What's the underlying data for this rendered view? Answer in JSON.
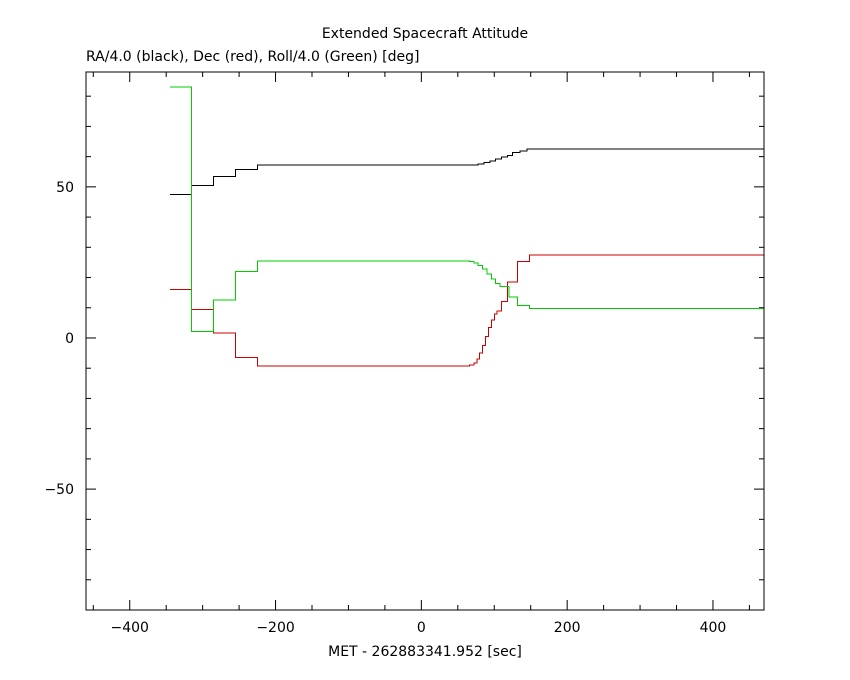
{
  "chart_data": {
    "type": "line",
    "title": "Extended Spacecraft Attitude",
    "subtitle": "RA/4.0 (black), Dec (red), Roll/4.0 (Green) [deg]",
    "xlabel": "MET - 262883341.952 [sec]",
    "ylabel": "",
    "xlim": [
      -460,
      470
    ],
    "ylim": [
      -90,
      88
    ],
    "xticks": [
      -400,
      -200,
      0,
      200,
      400
    ],
    "xtick_labels": [
      "−400",
      "−200",
      "0",
      "200",
      "400"
    ],
    "yticks": [
      -50,
      0,
      50
    ],
    "ytick_labels": [
      "−50",
      "0",
      "50"
    ],
    "x_minor_step": 50,
    "y_minor_step": 10,
    "grid": false,
    "series": [
      {
        "color": "#000000",
        "step": true,
        "x": [
          -345,
          -315,
          -285,
          -255,
          -225,
          70,
          78,
          86,
          94,
          102,
          110,
          118,
          125,
          135,
          145,
          470
        ],
        "y": [
          47.5,
          50.5,
          53.5,
          55.8,
          57.2,
          57.3,
          57.6,
          58.0,
          58.6,
          59.2,
          59.9,
          60.4,
          61.3,
          61.8,
          62.6,
          62.6
        ]
      },
      {
        "color": "#cc0000",
        "step": true,
        "x": [
          -345,
          -315,
          -285,
          -255,
          -225,
          66,
          72,
          76,
          80,
          84,
          88,
          92,
          96,
          100,
          104,
          110,
          118,
          132,
          148,
          470
        ],
        "y": [
          16,
          9.5,
          1.7,
          -6.5,
          -9.3,
          -9.0,
          -8.3,
          -7.0,
          -5.0,
          -2.5,
          0.5,
          3.5,
          6.0,
          8.0,
          9.0,
          12.0,
          18.5,
          25.3,
          27.5,
          27.5
        ]
      },
      {
        "color": "#00cc00",
        "step": true,
        "x": [
          -345,
          -315,
          -285,
          -255,
          -225,
          66,
          72,
          78,
          84,
          90,
          96,
          102,
          108,
          120,
          132,
          148,
          470
        ],
        "y": [
          83,
          2.2,
          12.5,
          22.0,
          25.5,
          25.3,
          24.8,
          24.0,
          22.8,
          21.2,
          19.5,
          18.0,
          17.0,
          13.5,
          10.8,
          9.8,
          9.8
        ]
      }
    ]
  }
}
